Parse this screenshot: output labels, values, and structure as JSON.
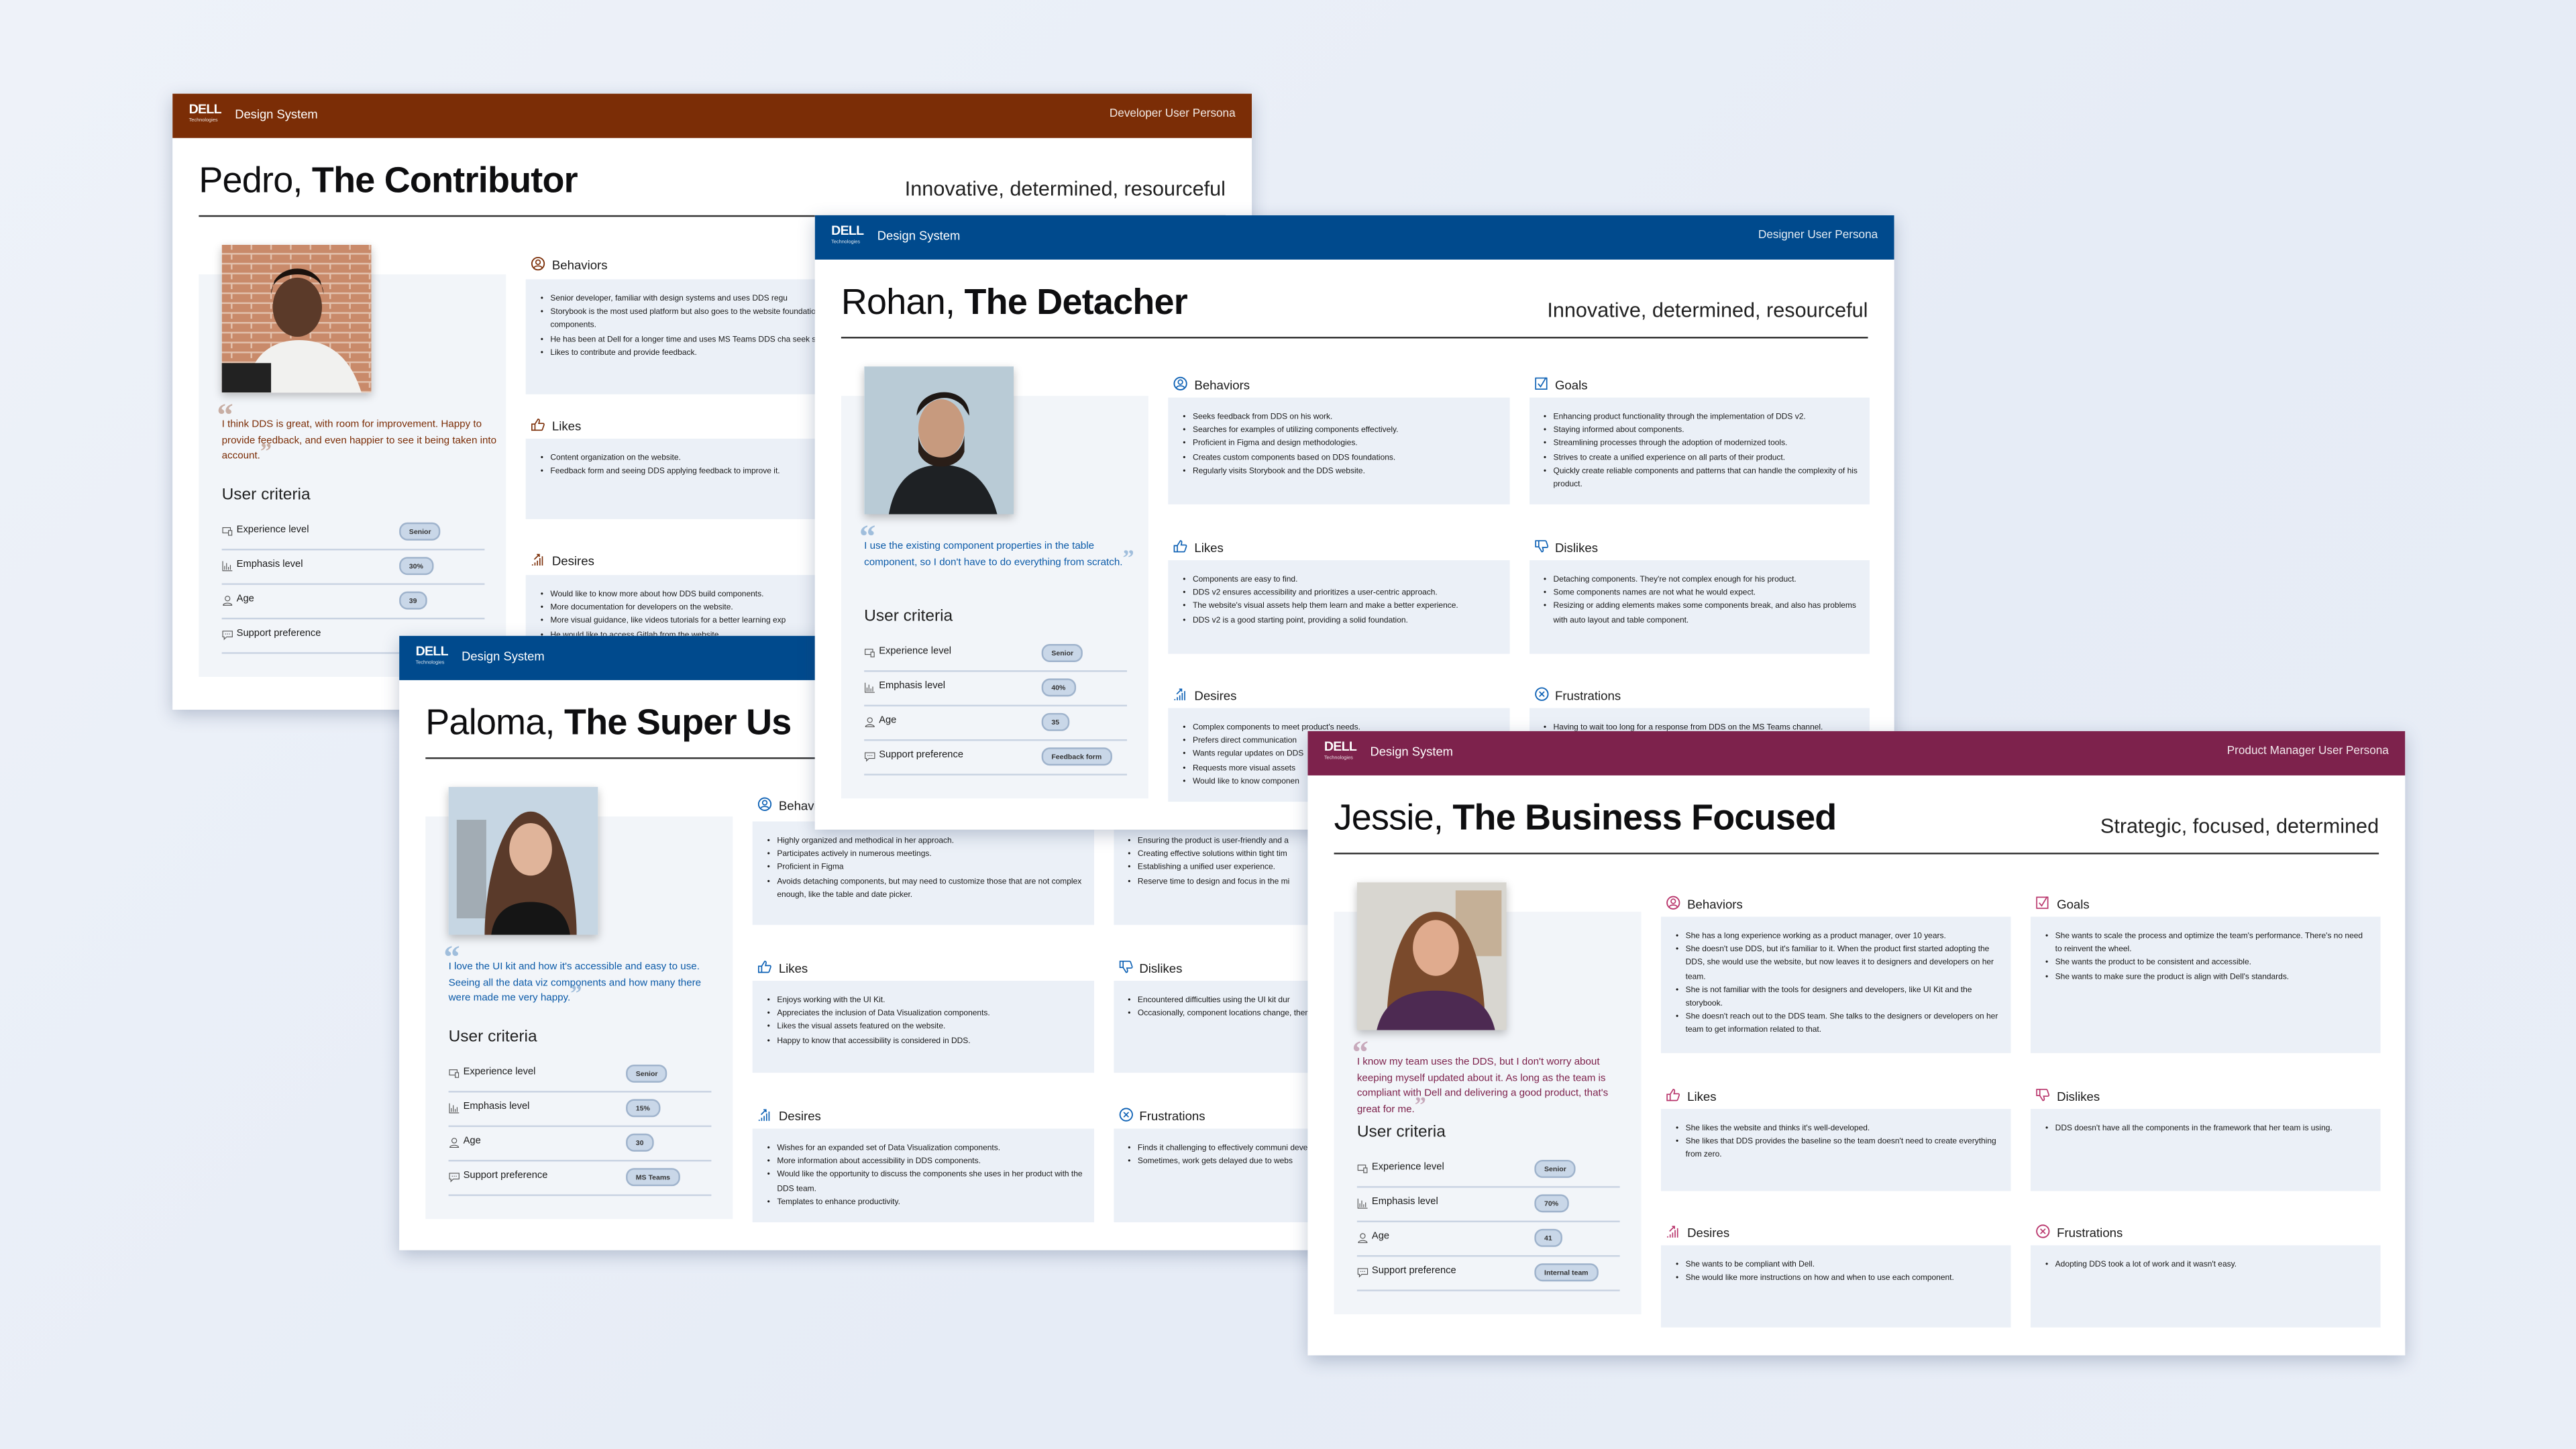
{
  "brand": {
    "logo": "DELL",
    "logo_sub": "Technologies",
    "product": "Design System"
  },
  "colors": {
    "developer": "#7b2d06",
    "designer": "#004a8d",
    "product_manager": "#7d224c",
    "panel": "#f2f5f9",
    "box": "#ebf0f7",
    "pill": "#c9d7e8"
  },
  "labels": {
    "user_criteria": "User criteria",
    "experience": "Experience level",
    "emphasis": "Emphasis level",
    "age": "Age",
    "support": "Support preference"
  },
  "personas": [
    {
      "persona_label": "Developer User Persona",
      "name": "Pedro,",
      "role": "The Contributor",
      "tagline": "Innovative, determined, resourceful",
      "accent": "#7b2d06",
      "quote_color": "#7b2d06",
      "quote": "I think DDS is great, with room for improvement. Happy to provide feedback, and even happier to see it being taken into account.",
      "criteria": {
        "experience": "Senior",
        "emphasis": "30%",
        "age": "39",
        "support": ""
      },
      "sections": [
        {
          "title": "Behaviors",
          "icon": "user-circle-icon",
          "items": [
            "Senior developer, familiar with design systems and uses DDS regu",
            "Storybook is the most used platform but also goes to the website foundations and components.",
            "He has been at Dell for a longer time and uses MS Teams DDS cha seek support.",
            "Likes to contribute and provide feedback."
          ]
        },
        null,
        {
          "title": "Likes",
          "icon": "thumbs-up-icon",
          "items": [
            "Content organization on the website.",
            "Feedback form and seeing DDS applying feedback to improve it."
          ]
        },
        null,
        {
          "title": "Desires",
          "icon": "growth-chart-icon",
          "items": [
            "Would like to know more about how DDS build components.",
            "More documentation for developers on the website.",
            "More visual guidance, like videos tutorials for a better learning exp",
            "He would like to access Gitlab from the website."
          ]
        },
        null
      ]
    },
    {
      "persona_label": "",
      "name": "Paloma,",
      "role": "The Super Us",
      "tagline": "",
      "accent": "#0a5fb4",
      "quote_color": "#0b5aa8",
      "quote": "I love the UI kit and how it's accessible and easy to use. Seeing all the data viz components and how many there were made me very happy.",
      "criteria": {
        "experience": "Senior",
        "emphasis": "15%",
        "age": "30",
        "support": "MS Teams"
      },
      "sections": [
        {
          "title": "Behaviors",
          "icon": "user-circle-icon",
          "items": [
            "Highly organized and methodical in her approach.",
            "Participates actively in numerous meetings.",
            "Proficient in Figma",
            "Avoids detaching components, but may need to customize those that are not complex enough, like the table and date picker."
          ]
        },
        {
          "title": "",
          "icon": "checkbox-icon",
          "items": [
            "Ensuring the product is user-friendly and a",
            "Creating effective solutions within tight tim",
            "Establishing a unified user experience.",
            "Reserve time to design and focus in the mi"
          ]
        },
        {
          "title": "Likes",
          "icon": "thumbs-up-icon",
          "items": [
            "Enjoys working with the UI Kit.",
            "Appreciates the inclusion of Data Visualization components.",
            "Likes the visual assets featured on the website.",
            "Happy to know that accessibility is considered in DDS."
          ]
        },
        {
          "title": "Dislikes",
          "icon": "thumbs-down-icon",
          "items": [
            "Encountered difficulties using the UI kit dur",
            "Occasionally, component locations change, them when needed."
          ]
        },
        {
          "title": "Desires",
          "icon": "growth-chart-icon",
          "items": [
            "Wishes for an expanded set of Data Visualization components.",
            "More information about accessibility in DDS components.",
            "Would like the opportunity to discuss the components she uses in her product with the DDS team.",
            "Templates to enhance productivity."
          ]
        },
        {
          "title": "Frustrations",
          "icon": "x-circle-icon",
          "items": [
            "Finds it challenging to effectively communi developers.",
            "Sometimes, work gets delayed due to webs"
          ]
        }
      ]
    },
    {
      "persona_label": "Designer User Persona",
      "name": "Rohan,",
      "role": "The Detacher",
      "tagline": "Innovative, determined, resourceful",
      "accent": "#0a5fb4",
      "quote_color": "#0b5aa8",
      "quote": "I use the existing component properties in the table component, so I don't have to do everything from scratch.",
      "criteria": {
        "experience": "Senior",
        "emphasis": "40%",
        "age": "35",
        "support": "Feedback form"
      },
      "sections": [
        {
          "title": "Behaviors",
          "icon": "user-circle-icon",
          "items": [
            "Seeks feedback from DDS on his work.",
            "Searches for examples of utilizing components effectively.",
            "Proficient in Figma and design methodologies.",
            "Creates custom components based on DDS foundations.",
            "Regularly visits Storybook and the DDS website."
          ]
        },
        {
          "title": "Goals",
          "icon": "checkbox-icon",
          "items": [
            "Enhancing product functionality through the implementation of DDS v2.",
            "Staying informed about components.",
            "Streamlining processes through the adoption of modernized tools.",
            "Strives to create a unified experience on all parts of their product.",
            "Quickly create reliable components and patterns that can handle the complexity of his product."
          ]
        },
        {
          "title": "Likes",
          "icon": "thumbs-up-icon",
          "items": [
            "Components are easy to find.",
            "DDS v2 ensures accessibility and prioritizes a user-centric approach.",
            "The website's visual assets help them learn and make a better experience.",
            "DDS v2 is a good starting point, providing a solid foundation."
          ]
        },
        {
          "title": "Dislikes",
          "icon": "thumbs-down-icon",
          "items": [
            "Detaching components. They're not complex enough for his product.",
            "Some components names are not what he would expect.",
            "Resizing or adding elements makes some components break, and also has problems with auto layout and table component."
          ]
        },
        {
          "title": "Desires",
          "icon": "growth-chart-icon",
          "items": [
            "Complex components to meet product's needs.",
            "Prefers direct communication",
            "Wants regular updates on DDS",
            "Requests more visual assets",
            "Would like to know componen"
          ]
        },
        {
          "title": "Frustrations",
          "icon": "x-circle-icon",
          "items": [
            "Having to wait too long for a response from DDS on the MS Teams channel."
          ]
        }
      ]
    },
    {
      "persona_label": "Product Manager User Persona",
      "name": "Jessie,",
      "role": "The Business Focused",
      "tagline": "Strategic, focused, determined",
      "accent": "#b8336a",
      "quote_color": "#7d224c",
      "quote": "I know my team uses the DDS, but I don't worry about keeping myself updated about it. As long as the team is compliant with Dell and delivering a good product, that's great for me.",
      "criteria": {
        "experience": "Senior",
        "emphasis": "70%",
        "age": "41",
        "support": "Internal team"
      },
      "sections": [
        {
          "title": "Behaviors",
          "icon": "user-circle-icon",
          "items": [
            "She has a long experience working as a product manager, over 10 years.",
            "She doesn't use DDS, but it's familiar to it. When the product first started adopting the DDS, she would use the website, but now leaves it to designers and developers on her team.",
            "She is not familiar with the tools for designers and developers, like UI Kit and the storybook.",
            "She doesn't reach out to the DDS team. She talks to the designers or developers on her team to get information related to that."
          ]
        },
        {
          "title": "Goals",
          "icon": "checkbox-icon",
          "items": [
            "She wants to scale the process and optimize the team's performance. There's no need to reinvent the wheel.",
            "She wants the product to be consistent and accessible.",
            "She wants to make sure the product is align with Dell's standards."
          ]
        },
        {
          "title": "Likes",
          "icon": "thumbs-up-icon",
          "items": [
            "She likes the website and thinks it's well-developed.",
            "She likes that DDS provides the baseline so the team doesn't need to create everything from zero."
          ]
        },
        {
          "title": "Dislikes",
          "icon": "thumbs-down-icon",
          "items": [
            "DDS doesn't have all the components in the framework that her team is using."
          ]
        },
        {
          "title": "Desires",
          "icon": "growth-chart-icon",
          "items": [
            "She wants to be compliant with Dell.",
            "She would like more instructions on how and when to use each component."
          ]
        },
        {
          "title": "Frustrations",
          "icon": "x-circle-icon",
          "items": [
            "Adopting DDS took a lot of work and it wasn't easy."
          ]
        }
      ]
    }
  ]
}
